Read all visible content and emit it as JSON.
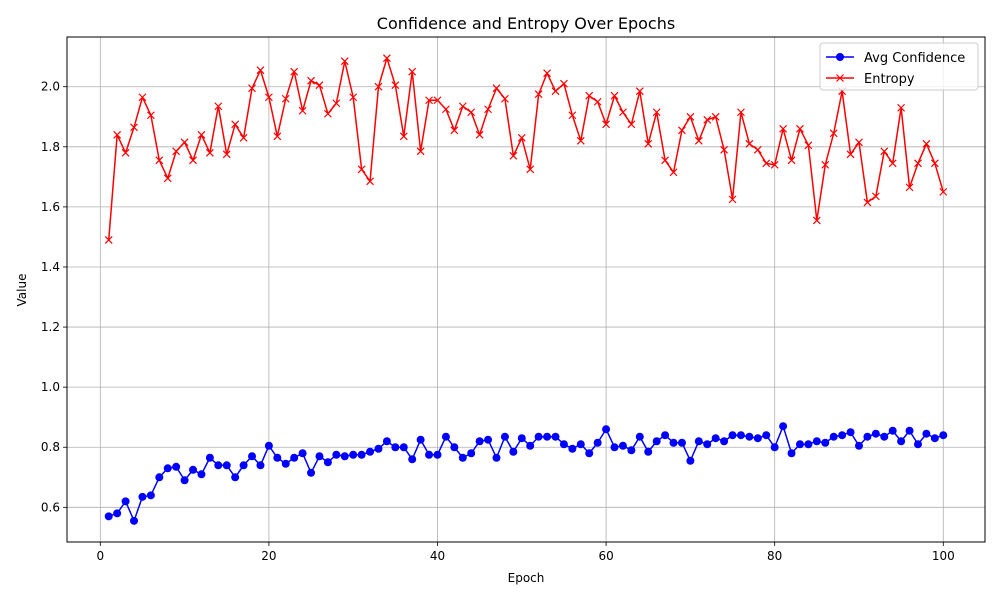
{
  "chart_data": {
    "type": "line",
    "title": "Confidence and Entropy Over Epochs",
    "xlabel": "Epoch",
    "ylabel": "Value",
    "xlim": [
      -3.95,
      104.95
    ],
    "ylim": [
      0.4846,
      2.1655
    ],
    "x_ticks": [
      0,
      20,
      40,
      60,
      80,
      100
    ],
    "x_tick_labels": [
      "0",
      "20",
      "40",
      "60",
      "80",
      "100"
    ],
    "y_ticks": [
      0.6,
      0.8,
      1.0,
      1.2,
      1.4,
      1.6,
      1.8,
      2.0
    ],
    "y_tick_labels": [
      "0.6",
      "0.8",
      "1.0",
      "1.2",
      "1.4",
      "1.6",
      "1.8",
      "2.0"
    ],
    "grid": true,
    "legend_position": "top-right",
    "x": [
      1,
      2,
      3,
      4,
      5,
      6,
      7,
      8,
      9,
      10,
      11,
      12,
      13,
      14,
      15,
      16,
      17,
      18,
      19,
      20,
      21,
      22,
      23,
      24,
      25,
      26,
      27,
      28,
      29,
      30,
      31,
      32,
      33,
      34,
      35,
      36,
      37,
      38,
      39,
      40,
      41,
      42,
      43,
      44,
      45,
      46,
      47,
      48,
      49,
      50,
      51,
      52,
      53,
      54,
      55,
      56,
      57,
      58,
      59,
      60,
      61,
      62,
      63,
      64,
      65,
      66,
      67,
      68,
      69,
      70,
      71,
      72,
      73,
      74,
      75,
      76,
      77,
      78,
      79,
      80,
      81,
      82,
      83,
      84,
      85,
      86,
      87,
      88,
      89,
      90,
      91,
      92,
      93,
      94,
      95,
      96,
      97,
      98,
      99,
      100
    ],
    "series": [
      {
        "name": "Avg Confidence",
        "color": "#0000ff",
        "marker": "circle",
        "values": [
          0.57,
          0.58,
          0.62,
          0.555,
          0.635,
          0.64,
          0.7,
          0.73,
          0.735,
          0.69,
          0.725,
          0.71,
          0.765,
          0.74,
          0.74,
          0.7,
          0.74,
          0.77,
          0.74,
          0.805,
          0.765,
          0.745,
          0.765,
          0.78,
          0.715,
          0.77,
          0.75,
          0.775,
          0.77,
          0.775,
          0.775,
          0.785,
          0.795,
          0.82,
          0.8,
          0.8,
          0.76,
          0.825,
          0.775,
          0.775,
          0.835,
          0.8,
          0.765,
          0.78,
          0.82,
          0.825,
          0.765,
          0.835,
          0.785,
          0.83,
          0.805,
          0.835,
          0.835,
          0.835,
          0.81,
          0.795,
          0.81,
          0.78,
          0.815,
          0.86,
          0.8,
          0.805,
          0.79,
          0.835,
          0.785,
          0.82,
          0.84,
          0.815,
          0.815,
          0.755,
          0.82,
          0.81,
          0.83,
          0.82,
          0.84,
          0.84,
          0.835,
          0.83,
          0.84,
          0.8,
          0.87,
          0.78,
          0.81,
          0.81,
          0.82,
          0.815,
          0.835,
          0.84,
          0.85,
          0.805,
          0.835,
          0.845,
          0.835,
          0.855,
          0.82,
          0.855,
          0.81,
          0.845,
          0.83,
          0.84
        ]
      },
      {
        "name": "Entropy",
        "color": "#ff0000",
        "marker": "x",
        "values": [
          1.49,
          1.84,
          1.78,
          1.865,
          1.965,
          1.905,
          1.755,
          1.695,
          1.785,
          1.815,
          1.755,
          1.84,
          1.78,
          1.935,
          1.775,
          1.875,
          1.83,
          1.995,
          2.055,
          1.965,
          1.835,
          1.96,
          2.05,
          1.92,
          2.02,
          2.005,
          1.91,
          1.945,
          2.085,
          1.965,
          1.725,
          1.685,
          2.0,
          2.095,
          2.005,
          1.835,
          2.05,
          1.785,
          1.955,
          1.955,
          1.925,
          1.855,
          1.935,
          1.915,
          1.84,
          1.925,
          1.995,
          1.96,
          1.77,
          1.83,
          1.725,
          1.975,
          2.045,
          1.985,
          2.01,
          1.905,
          1.82,
          1.97,
          1.95,
          1.875,
          1.97,
          1.915,
          1.875,
          1.985,
          1.81,
          1.915,
          1.755,
          1.715,
          1.855,
          1.9,
          1.82,
          1.89,
          1.9,
          1.79,
          1.625,
          1.915,
          1.81,
          1.79,
          1.745,
          1.74,
          1.86,
          1.755,
          1.86,
          1.805,
          1.555,
          1.74,
          1.845,
          1.985,
          1.775,
          1.815,
          1.615,
          1.635,
          1.785,
          1.745,
          1.93,
          1.665,
          1.745,
          1.81,
          1.745,
          1.65
        ]
      }
    ]
  }
}
